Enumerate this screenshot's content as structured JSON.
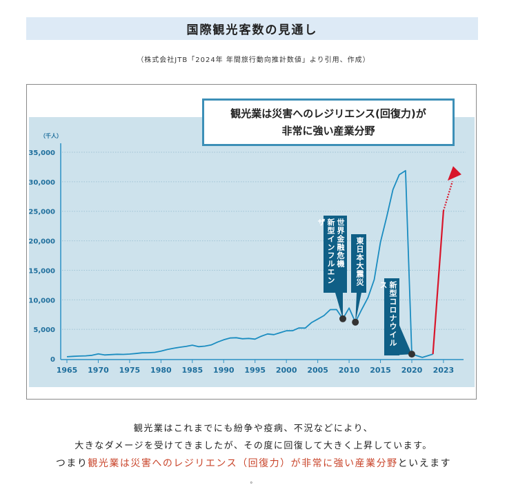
{
  "title": "国際観光客数の見通し",
  "source": "（株式会社JTB「2024年 年間旅行動向推計数値」より引用、作成）",
  "callout": {
    "line1": "観光業は災害へのレジリエンス(回復力)が",
    "line2": "非常に強い産業分野"
  },
  "events": [
    {
      "lines": [
        "世界金融危機",
        "新型インフルエンザ"
      ],
      "year": 2009
    },
    {
      "lines": [
        "東日本大震災"
      ],
      "year": 2011
    },
    {
      "lines": [
        "新型コロナウイルス"
      ],
      "year": 2020
    }
  ],
  "chart_data": {
    "type": "line",
    "ylabel": "（千人）",
    "ylim": [
      0,
      35000
    ],
    "yticks": [
      "0",
      "5,000",
      "10,000",
      "15,000",
      "20,000",
      "25,000",
      "30,000",
      "35,000"
    ],
    "ytick_values": [
      0,
      5000,
      10000,
      15000,
      20000,
      25000,
      30000,
      35000
    ],
    "xticks": [
      "1965",
      "1970",
      "1975",
      "1980",
      "1985",
      "1990",
      "1995",
      "2000",
      "2005",
      "2010",
      "2015",
      "2020",
      "2023"
    ],
    "grid": "horizontal dotted",
    "series": [
      {
        "color": "#1a8cc0",
        "x": [
          1965,
          1966,
          1967,
          1968,
          1969,
          1970,
          1971,
          1972,
          1973,
          1974,
          1975,
          1976,
          1977,
          1978,
          1979,
          1980,
          1981,
          1982,
          1983,
          1984,
          1985,
          1986,
          1987,
          1988,
          1989,
          1990,
          1991,
          1992,
          1993,
          1994,
          1995,
          1996,
          1997,
          1998,
          1999,
          2000,
          2001,
          2002,
          2003,
          2004,
          2005,
          2006,
          2007,
          2008,
          2009,
          2010,
          2011,
          2012,
          2013,
          2014,
          2015,
          2016,
          2017,
          2018,
          2019,
          2020,
          2021,
          2022
        ],
        "y": [
          367,
          433,
          477,
          519,
          609,
          854,
          660,
          724,
          785,
          764,
          812,
          915,
          1028,
          1039,
          1113,
          1317,
          1583,
          1793,
          1968,
          2110,
          2327,
          2062,
          2155,
          2355,
          2835,
          3236,
          3533,
          3582,
          3410,
          3468,
          3345,
          3837,
          4218,
          4106,
          4438,
          4757,
          4772,
          5239,
          5212,
          6138,
          6728,
          7334,
          8347,
          8351,
          6790,
          8611,
          6219,
          8358,
          10364,
          13413,
          19737,
          24040,
          28691,
          31192,
          31882,
          800,
          250,
          800
        ]
      },
      {
        "color": "#d8152a",
        "x": [
          2022,
          2023
        ],
        "y": [
          800,
          25066
        ]
      }
    ],
    "projection": {
      "color": "#d8152a",
      "style": "dotted arrow",
      "x": [
        2023,
        2024
      ],
      "y": [
        25066,
        31000
      ]
    },
    "markers": [
      {
        "x": 2009,
        "y": 6790
      },
      {
        "x": 2011,
        "y": 6219
      },
      {
        "x": 2020,
        "y": 800
      }
    ]
  },
  "body": {
    "line1": "観光業はこれまでにも紛争や疫病、不況などにより、",
    "line2": "大きなダメージを受けてきましたが、その度に回復して大きく上昇しています。",
    "line3_prefix": "つまり",
    "line3_highlight": "観光業は災害へのレジリエンス（回復力）が非常に強い産業分野",
    "line3_suffix": "といえます",
    "trailing": "。",
    "highlight_color": "#c9452b"
  }
}
